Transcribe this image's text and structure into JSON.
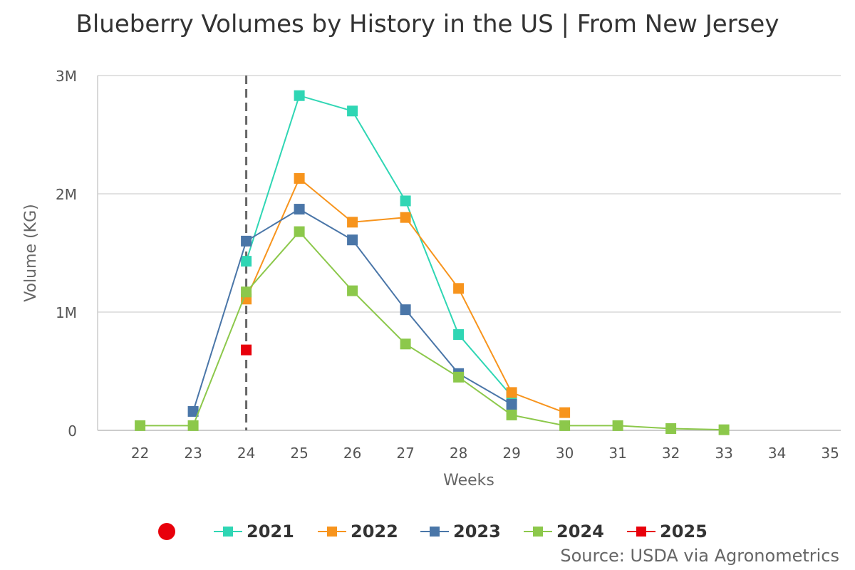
{
  "chart_data": {
    "type": "line",
    "title": "Blueberry Volumes by History in the US | From New Jersey",
    "xlabel": "Weeks",
    "ylabel": "Volume (KG)",
    "x_ticks": [
      22,
      23,
      24,
      25,
      26,
      27,
      28,
      29,
      30,
      31,
      32,
      33,
      34,
      35
    ],
    "xlim": [
      21.2,
      35.2
    ],
    "ylim": [
      0,
      3000000
    ],
    "y_ticks": [
      0,
      1000000,
      2000000,
      3000000
    ],
    "y_tick_labels": [
      "0",
      "1M",
      "2M",
      "3M"
    ],
    "grid": true,
    "current_week_marker": 24,
    "legend_position": "bottom",
    "series": [
      {
        "name": "2021",
        "color": "#2fd6b4",
        "points": [
          [
            24,
            1430000
          ],
          [
            25,
            2830000
          ],
          [
            26,
            2700000
          ],
          [
            27,
            1940000
          ],
          [
            28,
            810000
          ],
          [
            29,
            290000
          ]
        ]
      },
      {
        "name": "2022",
        "color": "#f7941d",
        "points": [
          [
            24,
            1110000
          ],
          [
            25,
            2130000
          ],
          [
            26,
            1760000
          ],
          [
            27,
            1800000
          ],
          [
            28,
            1200000
          ],
          [
            29,
            320000
          ],
          [
            30,
            150000
          ]
        ]
      },
      {
        "name": "2023",
        "color": "#4a76a8",
        "points": [
          [
            23,
            160000
          ],
          [
            24,
            1600000
          ],
          [
            25,
            1870000
          ],
          [
            26,
            1610000
          ],
          [
            27,
            1020000
          ],
          [
            28,
            480000
          ],
          [
            29,
            220000
          ]
        ]
      },
      {
        "name": "2024",
        "color": "#8cc84b",
        "points": [
          [
            22,
            40000
          ],
          [
            23,
            40000
          ],
          [
            24,
            1170000
          ],
          [
            25,
            1680000
          ],
          [
            26,
            1180000
          ],
          [
            27,
            730000
          ],
          [
            28,
            450000
          ],
          [
            29,
            130000
          ],
          [
            30,
            40000
          ],
          [
            31,
            40000
          ],
          [
            32,
            15000
          ],
          [
            33,
            5000
          ]
        ]
      },
      {
        "name": "2025",
        "color": "#e8000b",
        "points": [
          [
            24,
            680000
          ]
        ]
      }
    ]
  },
  "source": "Source: USDA via Agronometrics"
}
